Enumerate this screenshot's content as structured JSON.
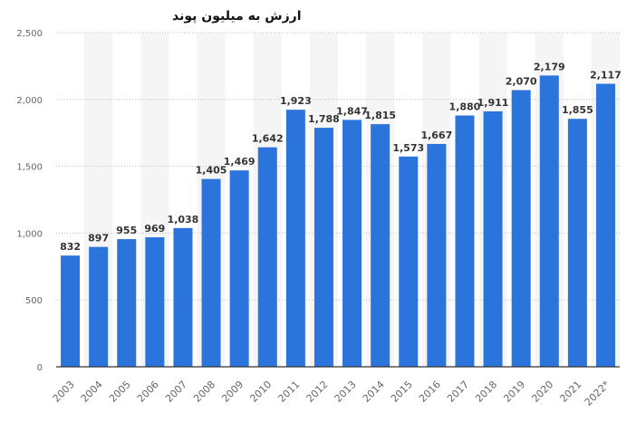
{
  "chart_data": {
    "type": "bar",
    "title": "ارزش به میلیون پوند",
    "xlabel": "",
    "ylabel": "",
    "categories": [
      "2003",
      "2004",
      "2005",
      "2006",
      "2007",
      "2008",
      "2009",
      "2010",
      "2011",
      "2012",
      "2013",
      "2014",
      "2015",
      "2016",
      "2017",
      "2018",
      "2019",
      "2020",
      "2021",
      "2022*"
    ],
    "values": [
      832,
      897,
      955,
      969,
      1038,
      1405,
      1469,
      1642,
      1923,
      1788,
      1847,
      1815,
      1573,
      1667,
      1880,
      1911,
      2070,
      2179,
      1855,
      2117
    ],
    "value_labels": [
      "832",
      "897",
      "955",
      "969",
      "1,038",
      "1,405",
      "1,469",
      "1,642",
      "1,923",
      "1,788",
      "1,847",
      "1,815",
      "1,573",
      "1,667",
      "1,880",
      "1,911",
      "2,070",
      "2,179",
      "1,855",
      "2,117"
    ],
    "yticks": [
      0,
      500,
      1000,
      1500,
      2000,
      2500
    ],
    "ytick_labels": [
      "0",
      "500",
      "1,000",
      "1,500",
      "2,000",
      "2,500"
    ],
    "ylim": [
      0,
      2500
    ],
    "grid": true,
    "bar_color": "#2a74db",
    "band_color": "#f5f5f5"
  }
}
